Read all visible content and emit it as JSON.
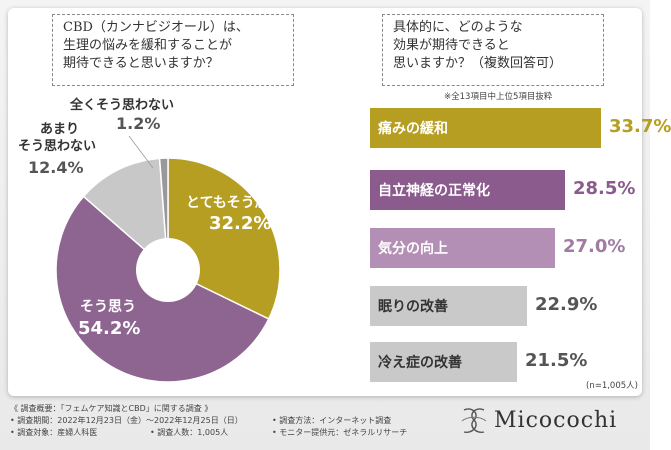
{
  "left_question": {
    "lines": [
      "CBD（カンナビジオール）は、",
      "生理の悩みを緩和することが",
      "期待できると思いますか？"
    ]
  },
  "right_question": {
    "lines": [
      "具体的に、どのような",
      "効果が期待できると",
      "思いますか？（複数回答可）"
    ]
  },
  "chart_data": [
    {
      "type": "pie",
      "title": "CBD（カンナビジオール）は、生理の悩みを緩和することが期待できると思いますか？",
      "slices": [
        {
          "label": "とてもそう思う",
          "value": 32.2,
          "display": "32.2%",
          "color": "#b59e22"
        },
        {
          "label": "そう思う",
          "value": 54.2,
          "display": "54.2%",
          "color": "#8e6590"
        },
        {
          "label_lines": [
            "あまり",
            "そう思わない"
          ],
          "label": "あまりそう思わない",
          "value": 12.4,
          "display": "12.4%",
          "color": "#c8c8c8"
        },
        {
          "label": "全くそう思わない",
          "value": 1.2,
          "display": "1.2%",
          "color": "#999999"
        }
      ]
    },
    {
      "type": "bar",
      "orientation": "horizontal",
      "title": "具体的に、どのような効果が期待できると思いますか？（複数回答可）",
      "note": "※全13項目中上位5項目抜粋",
      "n_label": "(n=1,005人)",
      "xlim": [
        0,
        40
      ],
      "bars": [
        {
          "label": "痛みの緩和",
          "value": 33.7,
          "display": "33.7%",
          "color": "#b59e22",
          "value_color": "#b59e22",
          "label_color": "#ffffff"
        },
        {
          "label": "自立神経の正常化",
          "value": 28.5,
          "display": "28.5%",
          "color": "#8a5b8c",
          "value_color": "#8a5b8c",
          "label_color": "#ffffff"
        },
        {
          "label": "気分の向上",
          "value": 27.0,
          "display": "27.0%",
          "color": "#b48fb5",
          "value_color": "#a07ca2",
          "label_color": "#ffffff"
        },
        {
          "label": "眠りの改善",
          "value": 22.9,
          "display": "22.9%",
          "color": "#c9c9c9",
          "value_color": "#555555",
          "label_color": "#333333"
        },
        {
          "label": "冷え症の改善",
          "value": 21.5,
          "display": "21.5%",
          "color": "#c9c9c9",
          "value_color": "#555555",
          "label_color": "#333333"
        }
      ]
    }
  ],
  "footer": {
    "overview": "《 調査概要：「フェムケア知識とCBD」に関する調査 》",
    "period": "• 調査期間：2022年12月23日（金）～2022年12月25日（日）",
    "method": "• 調査方法：インターネット調査",
    "target": "• 調査対象：産婦人科医",
    "count": "• 調査人数：1,005人",
    "provider": "• モニター提供元：ゼネラルリサーチ"
  },
  "brand": {
    "name": "Micocochi",
    "logo_icon": "micocochi-logo-icon"
  }
}
